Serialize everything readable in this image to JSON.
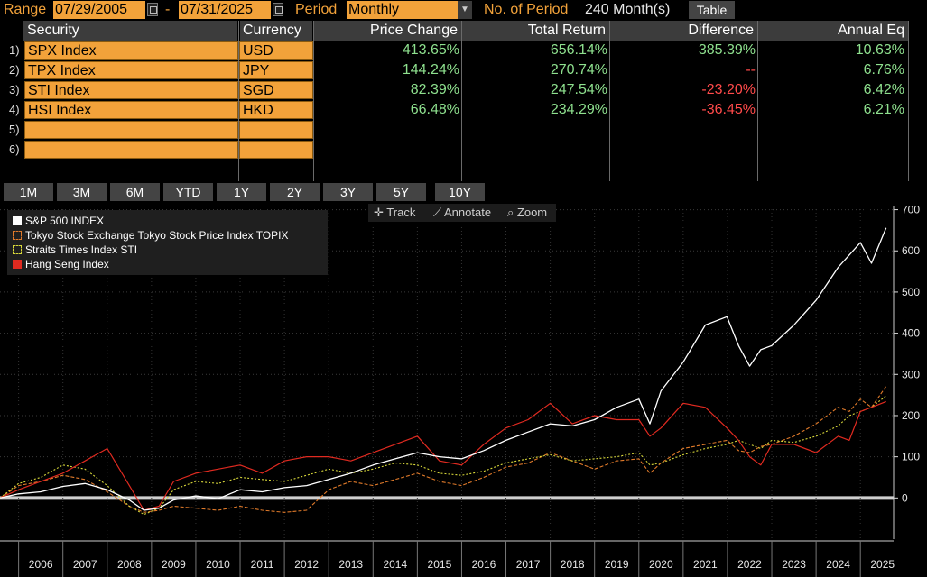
{
  "toolbar": {
    "range_label": "Range",
    "start_date": "07/29/2005",
    "dash": "-",
    "end_date": "07/31/2025",
    "period_label": "Period",
    "period_value": "Monthly",
    "nperiods_label": "No. of Period",
    "nperiods_value": "240 Month(s)",
    "table_button": "Table"
  },
  "table": {
    "headers": [
      "Security",
      "Currency",
      "Price Change",
      "Total Return",
      "Difference",
      "Annual Eq"
    ],
    "rows": [
      {
        "num": "1)",
        "security": "SPX Index",
        "currency": "USD",
        "price_change": "413.65%",
        "total_return": "656.14%",
        "difference": "385.39%",
        "annual_eq": "10.63%"
      },
      {
        "num": "2)",
        "security": "TPX Index",
        "currency": "JPY",
        "price_change": "144.24%",
        "total_return": "270.74%",
        "difference": "--",
        "annual_eq": "6.76%"
      },
      {
        "num": "3)",
        "security": "STI Index",
        "currency": "SGD",
        "price_change": "82.39%",
        "total_return": "247.54%",
        "difference": "-23.20%",
        "annual_eq": "6.42%"
      },
      {
        "num": "4)",
        "security": "HSI Index",
        "currency": "HKD",
        "price_change": "66.48%",
        "total_return": "234.29%",
        "difference": "-36.45%",
        "annual_eq": "6.21%"
      },
      {
        "num": "5)",
        "security": "",
        "currency": "",
        "price_change": "",
        "total_return": "",
        "difference": "",
        "annual_eq": ""
      },
      {
        "num": "6)",
        "security": "",
        "currency": "",
        "price_change": "",
        "total_return": "",
        "difference": "",
        "annual_eq": ""
      }
    ]
  },
  "range_tabs": [
    "1M",
    "3M",
    "6M",
    "YTD",
    "1Y",
    "2Y",
    "3Y",
    "5Y",
    "10Y"
  ],
  "chart_tools": {
    "track": "Track",
    "annotate": "Annotate",
    "zoom": "Zoom"
  },
  "colors": {
    "accent": "#f2a23a",
    "positive": "#8ee08e",
    "negative": "#ff4a4a",
    "spx": "#ffffff",
    "tpx": "#e07a2a",
    "sti": "#d8d83a",
    "hsi": "#e02a20"
  },
  "chart_data": {
    "type": "line",
    "title": "",
    "xlabel": "",
    "ylabel": "",
    "x": [
      2005.58,
      2006,
      2006.5,
      2007,
      2007.5,
      2008,
      2008.5,
      2008.83,
      2009.17,
      2009.5,
      2010,
      2010.5,
      2011,
      2011.5,
      2012,
      2012.5,
      2013,
      2013.5,
      2014,
      2014.5,
      2015,
      2015.5,
      2016,
      2016.5,
      2017,
      2017.5,
      2018,
      2018.5,
      2019,
      2019.5,
      2020,
      2020.25,
      2020.5,
      2021,
      2021.5,
      2021.99,
      2022.25,
      2022.5,
      2022.75,
      2023,
      2023.5,
      2024,
      2024.5,
      2024.75,
      2025,
      2025.25,
      2025.58
    ],
    "xticks": [
      "2006",
      "2007",
      "2008",
      "2009",
      "2010",
      "2011",
      "2012",
      "2013",
      "2014",
      "2015",
      "2016",
      "2017",
      "2018",
      "2019",
      "2020",
      "2021",
      "2022",
      "2023",
      "2024",
      "2025"
    ],
    "ylim": [
      -100,
      710
    ],
    "yticks": [
      0,
      100,
      200,
      300,
      400,
      500,
      600,
      700
    ],
    "legend": "top-left",
    "grid": true,
    "series": [
      {
        "name": "S&P 500 INDEX",
        "values": [
          0,
          10,
          15,
          28,
          35,
          20,
          -5,
          -30,
          -25,
          -5,
          5,
          -2,
          20,
          15,
          25,
          30,
          45,
          60,
          80,
          95,
          110,
          100,
          95,
          115,
          140,
          160,
          180,
          175,
          190,
          220,
          240,
          180,
          260,
          330,
          420,
          440,
          370,
          320,
          360,
          370,
          420,
          480,
          560,
          590,
          620,
          570,
          656
        ]
      },
      {
        "name": "Tokyo Stock Exchange Tokyo Stock Price Index TOPIX",
        "values": [
          0,
          30,
          40,
          55,
          45,
          15,
          -20,
          -35,
          -30,
          -20,
          -25,
          -30,
          -20,
          -30,
          -35,
          -30,
          20,
          40,
          30,
          45,
          60,
          40,
          30,
          50,
          75,
          85,
          110,
          90,
          70,
          90,
          95,
          60,
          85,
          120,
          130,
          140,
          115,
          110,
          125,
          130,
          150,
          180,
          220,
          210,
          240,
          220,
          271
        ]
      },
      {
        "name": "Straits Times Index STI",
        "values": [
          0,
          35,
          50,
          80,
          70,
          30,
          -20,
          -40,
          -25,
          20,
          40,
          35,
          50,
          45,
          40,
          55,
          70,
          60,
          70,
          85,
          80,
          60,
          55,
          65,
          85,
          95,
          105,
          90,
          95,
          100,
          110,
          80,
          85,
          105,
          120,
          130,
          140,
          130,
          120,
          140,
          135,
          150,
          175,
          200,
          210,
          220,
          248
        ]
      },
      {
        "name": "Hang Seng Index",
        "values": [
          0,
          20,
          40,
          60,
          90,
          120,
          30,
          -30,
          -20,
          40,
          60,
          70,
          80,
          60,
          90,
          100,
          100,
          90,
          110,
          130,
          150,
          90,
          80,
          130,
          170,
          190,
          230,
          180,
          200,
          190,
          190,
          150,
          170,
          230,
          220,
          170,
          140,
          100,
          80,
          130,
          130,
          110,
          150,
          140,
          210,
          220,
          234
        ]
      }
    ]
  }
}
